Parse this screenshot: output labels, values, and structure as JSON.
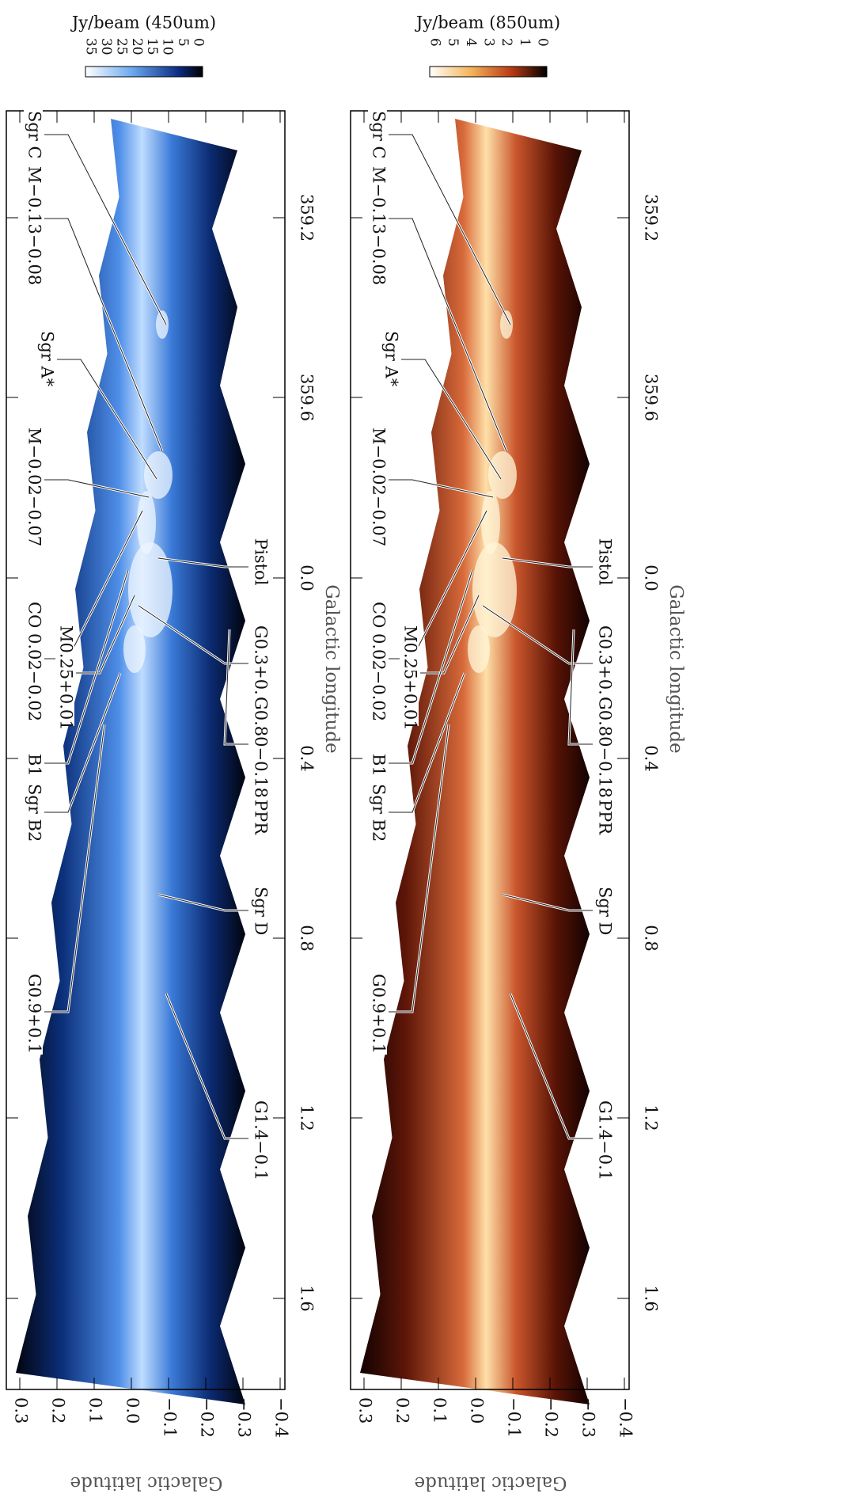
{
  "panels": [
    {
      "colorbar": {
        "label": "Jy/beam (450um)",
        "ticks": [
          "35",
          "30",
          "25",
          "20",
          "15",
          "10",
          "5",
          "0"
        ]
      },
      "latitude_ticks": [
        "0.3",
        "0.2",
        "0.1",
        "0.0",
        "−0.1",
        "−0.2",
        "−0.3",
        "−0.4"
      ],
      "longitude_ticks": [
        "1.6",
        "1.2",
        "0.8",
        "0.4",
        "0.0",
        "359.6",
        "359.2"
      ],
      "xlabel": "Galactic longitude",
      "ylabel": "Galactic latitude",
      "annotations": [
        "Sgr C",
        "M−0.13−0.08",
        "Sgr A*",
        "M−0.02−0.07",
        "CO 0.02−0.02",
        "M0.25+0.01",
        "B1",
        "Sgr B2",
        "G0.9+0.1",
        "Pistol",
        "G0.3+0.0",
        "G0.80−0.18",
        "PPR",
        "Sgr D",
        "G1.4−0.1"
      ]
    },
    {
      "colorbar": {
        "label": "Jy/beam (850um)",
        "ticks": [
          "6",
          "5",
          "4",
          "3",
          "2",
          "1",
          "0"
        ]
      },
      "latitude_ticks": [
        "0.3",
        "0.2",
        "0.1",
        "0.0",
        "−0.1",
        "−0.2",
        "−0.3",
        "−0.4"
      ],
      "longitude_ticks": [
        "1.6",
        "1.2",
        "0.8",
        "0.4",
        "0.0",
        "359.6",
        "359.2"
      ],
      "xlabel": "Galactic longitude",
      "ylabel": "Galactic latitude",
      "annotations": [
        "Sgr C",
        "M−0.13−0.08",
        "Sgr A*",
        "M−0.02−0.07",
        "CO 0.02−0.02",
        "M0.25+0.01",
        "B1",
        "Sgr B2",
        "G0.9+0.1",
        "Pistol",
        "G0.3+0.0",
        "G0.80−0.18",
        "PPR",
        "Sgr D",
        "G1.4−0.1"
      ]
    }
  ]
}
